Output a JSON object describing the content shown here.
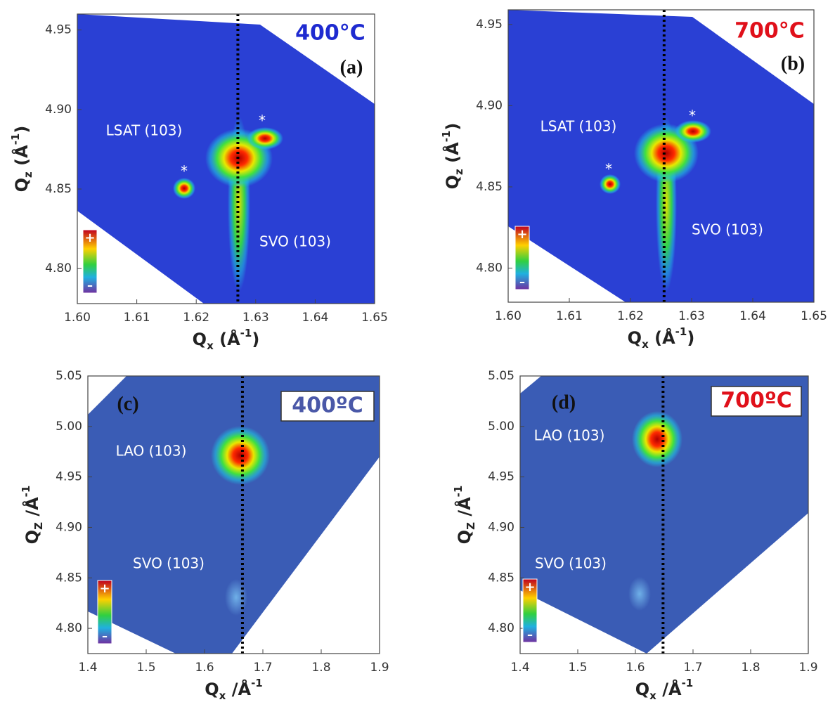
{
  "chart_data": [
    {
      "type": "heatmap",
      "panel_label": "(a)",
      "temperature": "400°C",
      "label_color": "#1e2ad0",
      "annotations": [
        "LSAT (103)",
        "SVO (103)",
        "*",
        "*"
      ],
      "colorbar_labels": [
        "+",
        "–"
      ],
      "xlabel": [
        "Q",
        "x",
        " (Å",
        "-1",
        ")"
      ],
      "ylabel": [
        "Q",
        "z",
        " (Å",
        "-1",
        ")"
      ],
      "xlim": [
        1.6,
        1.65
      ],
      "ylim": [
        4.778,
        4.96
      ],
      "xticks": [
        {
          "value": 1.6,
          "label": "1.60"
        },
        1.61,
        1.62,
        1.63,
        1.64,
        1.65
      ],
      "yticks": [
        {
          "value": 4.8,
          "label": "4.80"
        },
        4.85,
        {
          "value": 4.9,
          "label": "4.90"
        },
        4.95
      ],
      "reference_x": 1.627
    },
    {
      "type": "heatmap",
      "panel_label": "(b)",
      "temperature": "700°C",
      "label_color": "#e0101a",
      "annotations": [
        "LSAT (103)",
        "SVO (103)",
        "*",
        "*"
      ],
      "colorbar_labels": [
        "+",
        "–"
      ],
      "xlabel": [
        "Q",
        "x",
        " (Å",
        "-1",
        ")"
      ],
      "ylabel": [
        "Q",
        "z",
        " (Å",
        "-1",
        ")"
      ],
      "xlim": [
        1.6,
        1.65
      ],
      "ylim": [
        4.779,
        4.959
      ],
      "xticks": [
        {
          "value": 1.6,
          "label": "1.60"
        },
        1.61,
        1.62,
        1.63,
        1.64,
        1.65
      ],
      "yticks": [
        {
          "value": 4.8,
          "label": "4.80"
        },
        4.85,
        {
          "value": 4.9,
          "label": "4.90"
        },
        4.95
      ],
      "reference_x": 1.6255
    },
    {
      "type": "heatmap",
      "panel_label": "(c)",
      "temperature": "400ºC",
      "label_color": "#4a58a8",
      "annotations": [
        "LAO (103)",
        "SVO (103)"
      ],
      "colorbar_labels": [
        "+",
        "–"
      ],
      "xlabel": [
        "Q",
        "x",
        " /Å",
        "-1",
        ""
      ],
      "ylabel": [
        "Q",
        "Z",
        " /Å",
        "-1",
        ""
      ],
      "xlim": [
        1.4,
        1.9
      ],
      "ylim": [
        4.775,
        5.05
      ],
      "xticks": [
        1.4,
        1.5,
        1.6,
        1.7,
        1.8,
        1.9
      ],
      "yticks": [
        {
          "value": 4.8,
          "label": "4.80"
        },
        4.85,
        {
          "value": 4.9,
          "label": "4.90"
        },
        4.95,
        {
          "value": 5.0,
          "label": "5.00"
        },
        5.05
      ],
      "reference_x": 1.665
    },
    {
      "type": "heatmap",
      "panel_label": "(d)",
      "temperature": "700ºC",
      "label_color": "#e0101a",
      "annotations": [
        "LAO (103)",
        "SVO (103)"
      ],
      "colorbar_labels": [
        "+",
        "–"
      ],
      "xlabel": [
        "Q",
        "x",
        " /Å",
        "-1",
        ""
      ],
      "ylabel": [
        "Q",
        "Z",
        " /Å",
        "-1",
        ""
      ],
      "xlim": [
        1.4,
        1.9
      ],
      "ylim": [
        4.775,
        5.05
      ],
      "xticks": [
        1.4,
        1.5,
        1.6,
        1.7,
        1.8,
        1.9
      ],
      "yticks": [
        {
          "value": 4.8,
          "label": "4.80"
        },
        4.85,
        {
          "value": 4.9,
          "label": "4.90"
        },
        4.95,
        {
          "value": 5.0,
          "label": "5.00"
        },
        5.05
      ],
      "reference_x": 1.648
    }
  ]
}
